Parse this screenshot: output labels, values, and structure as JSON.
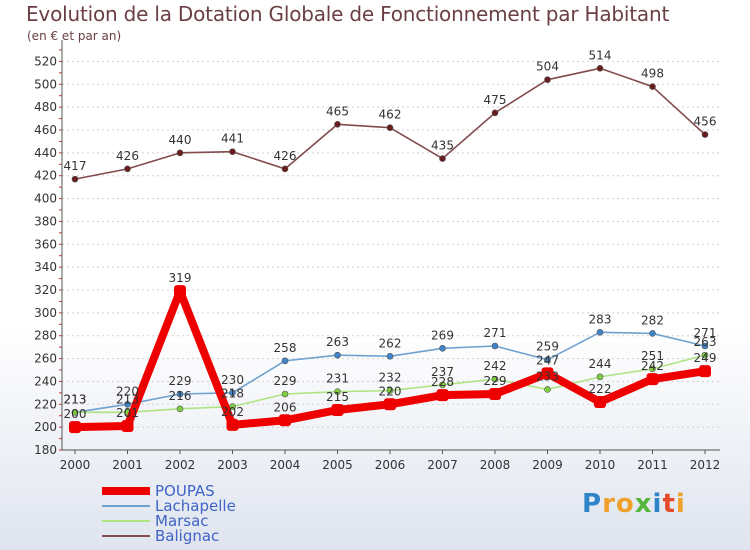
{
  "title": "Evolution de la Dotation Globale de Fonctionnement par Habitant",
  "subtitle": "(en € et par an)",
  "logo": {
    "letters": [
      "P",
      "r",
      "o",
      "x",
      "i",
      "t",
      "i"
    ],
    "colors": [
      "#2f84c9",
      "#f0a12b",
      "#f0a12b",
      "#55b63b",
      "#2f84c9",
      "#e54a2b",
      "#f0a12b"
    ]
  },
  "chart_data": {
    "type": "line",
    "title": "Evolution de la Dotation Globale de Fonctionnement par Habitant",
    "subtitle": "(en € et par an)",
    "xlabel": "",
    "ylabel": "",
    "x": [
      "2000",
      "2001",
      "2002",
      "2003",
      "2004",
      "2005",
      "2006",
      "2007",
      "2008",
      "2009",
      "2010",
      "2011",
      "2012"
    ],
    "ylim": [
      180,
      530
    ],
    "yticks": [
      180,
      200,
      220,
      240,
      260,
      280,
      300,
      320,
      340,
      360,
      380,
      400,
      420,
      440,
      460,
      480,
      500,
      520
    ],
    "grid": "dashed horizontal",
    "legend_position": "bottom-left",
    "series": [
      {
        "name": "POUPAS",
        "color": "#ee0000",
        "bold": true,
        "values": [
          200,
          201,
          319,
          202,
          206,
          215,
          220,
          228,
          229,
          247,
          222,
          242,
          249
        ]
      },
      {
        "name": "Lachapelle",
        "color": "#6fa2cf",
        "point_color": "#3f84c8",
        "bold": false,
        "values": [
          213,
          220,
          229,
          230,
          258,
          263,
          262,
          269,
          271,
          259,
          283,
          282,
          271
        ]
      },
      {
        "name": "Marsac",
        "color": "#aee483",
        "point_color": "#7dcf3f",
        "bold": false,
        "values": [
          213,
          213,
          216,
          218,
          229,
          231,
          232,
          237,
          242,
          233,
          244,
          251,
          263
        ]
      },
      {
        "name": "Balignac",
        "color": "#824b4d",
        "point_color": "#6b1c1e",
        "bold": false,
        "values": [
          417,
          426,
          440,
          441,
          426,
          465,
          462,
          435,
          475,
          504,
          514,
          498,
          456
        ]
      }
    ]
  }
}
